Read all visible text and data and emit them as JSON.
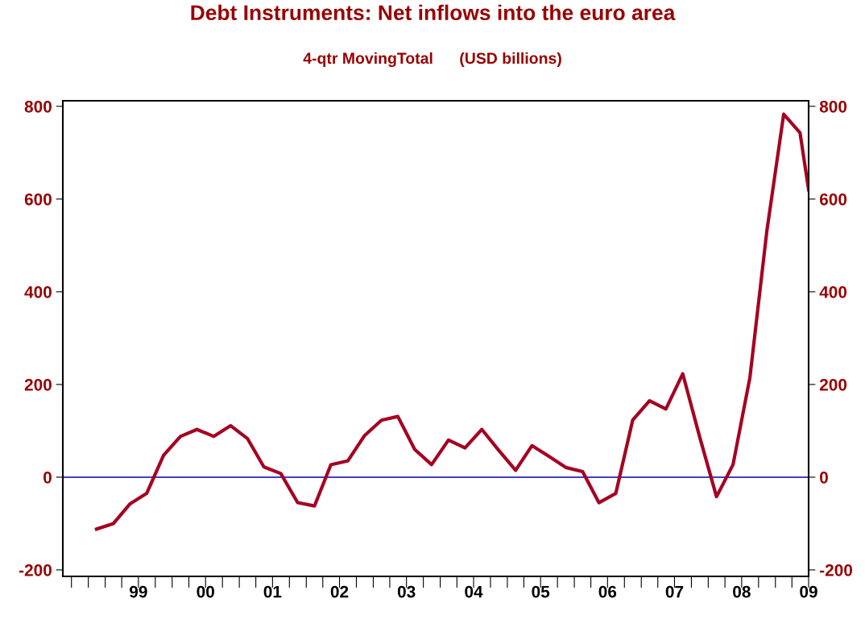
{
  "chart_data": {
    "type": "line",
    "title": "Debt Instruments: Net inflows into the euro area",
    "subtitle": "4-qtr MovingTotal      (USD billions)",
    "x": [
      "1998-11-15",
      "1999-02-15",
      "1999-05-15",
      "1999-08-15",
      "1999-11-15",
      "2000-02-15",
      "2000-05-15",
      "2000-08-15",
      "2000-11-15",
      "2001-02-15",
      "2001-05-15",
      "2001-08-15",
      "2001-11-15",
      "2002-02-15",
      "2002-05-15",
      "2002-08-15",
      "2002-11-15",
      "2003-02-15",
      "2003-05-15",
      "2003-08-15",
      "2003-11-15",
      "2004-02-15",
      "2004-05-15",
      "2004-08-15",
      "2004-11-15",
      "2005-02-15",
      "2005-05-15",
      "2005-08-15",
      "2005-11-15",
      "2006-02-15",
      "2006-05-15",
      "2006-08-15",
      "2006-11-15",
      "2007-02-15",
      "2007-05-15",
      "2007-08-15",
      "2007-11-15",
      "2008-02-15",
      "2008-05-15",
      "2008-08-15",
      "2008-11-15",
      "2009-02-15",
      "2009-05-15",
      "2009-07-01"
    ],
    "series": [
      {
        "color": "#a50021",
        "values": [
          -112,
          -100,
          -58,
          -35,
          47,
          88,
          103,
          88,
          111,
          83,
          22,
          8,
          -55,
          -62,
          27,
          35,
          90,
          123,
          131,
          60,
          27,
          80,
          63,
          103,
          58,
          15,
          68,
          45,
          21,
          12,
          -55,
          -35,
          123,
          165,
          147,
          223,
          87,
          -42,
          27,
          215,
          530,
          783,
          743,
          620
        ]
      }
    ],
    "xlim": [
      "1998-05-15",
      "2009-07-01"
    ],
    "xticks": [
      {
        "value": "1998-07-01",
        "label": null
      },
      {
        "value": "1998-10-01",
        "label": null
      },
      {
        "value": "1999-01-01",
        "label": null
      },
      {
        "value": "1999-04-01",
        "label": null
      },
      {
        "value": "1999-07-01",
        "label": "99"
      },
      {
        "value": "1999-10-01",
        "label": null
      },
      {
        "value": "2000-01-01",
        "label": null
      },
      {
        "value": "2000-04-01",
        "label": null
      },
      {
        "value": "2000-07-01",
        "label": "00"
      },
      {
        "value": "2000-10-01",
        "label": null
      },
      {
        "value": "2001-01-01",
        "label": null
      },
      {
        "value": "2001-04-01",
        "label": null
      },
      {
        "value": "2001-07-01",
        "label": "01"
      },
      {
        "value": "2001-10-01",
        "label": null
      },
      {
        "value": "2002-01-01",
        "label": null
      },
      {
        "value": "2002-04-01",
        "label": null
      },
      {
        "value": "2002-07-01",
        "label": "02"
      },
      {
        "value": "2002-10-01",
        "label": null
      },
      {
        "value": "2003-01-01",
        "label": null
      },
      {
        "value": "2003-04-01",
        "label": null
      },
      {
        "value": "2003-07-01",
        "label": "03"
      },
      {
        "value": "2003-10-01",
        "label": null
      },
      {
        "value": "2004-01-01",
        "label": null
      },
      {
        "value": "2004-04-01",
        "label": null
      },
      {
        "value": "2004-07-01",
        "label": "04"
      },
      {
        "value": "2004-10-01",
        "label": null
      },
      {
        "value": "2005-01-01",
        "label": null
      },
      {
        "value": "2005-04-01",
        "label": null
      },
      {
        "value": "2005-07-01",
        "label": "05"
      },
      {
        "value": "2005-10-01",
        "label": null
      },
      {
        "value": "2006-01-01",
        "label": null
      },
      {
        "value": "2006-04-01",
        "label": null
      },
      {
        "value": "2006-07-01",
        "label": "06"
      },
      {
        "value": "2006-10-01",
        "label": null
      },
      {
        "value": "2007-01-01",
        "label": null
      },
      {
        "value": "2007-04-01",
        "label": null
      },
      {
        "value": "2007-07-01",
        "label": "07"
      },
      {
        "value": "2007-10-01",
        "label": null
      },
      {
        "value": "2008-01-01",
        "label": null
      },
      {
        "value": "2008-04-01",
        "label": null
      },
      {
        "value": "2008-07-01",
        "label": "08"
      },
      {
        "value": "2008-10-01",
        "label": null
      },
      {
        "value": "2009-01-01",
        "label": null
      },
      {
        "value": "2009-04-01",
        "label": null
      },
      {
        "value": "2009-07-01",
        "label": "09"
      }
    ],
    "ylim": [
      -214,
      812
    ],
    "yticks": [
      -200,
      0,
      200,
      400,
      600,
      800
    ],
    "y2lim": [
      -214,
      812
    ],
    "y2ticks": [
      -200,
      0,
      200,
      400,
      600,
      800
    ],
    "ref_lines": [
      {
        "axis": "y",
        "value": 0,
        "color": "#0000aa"
      }
    ],
    "grid": false,
    "legend": false
  }
}
